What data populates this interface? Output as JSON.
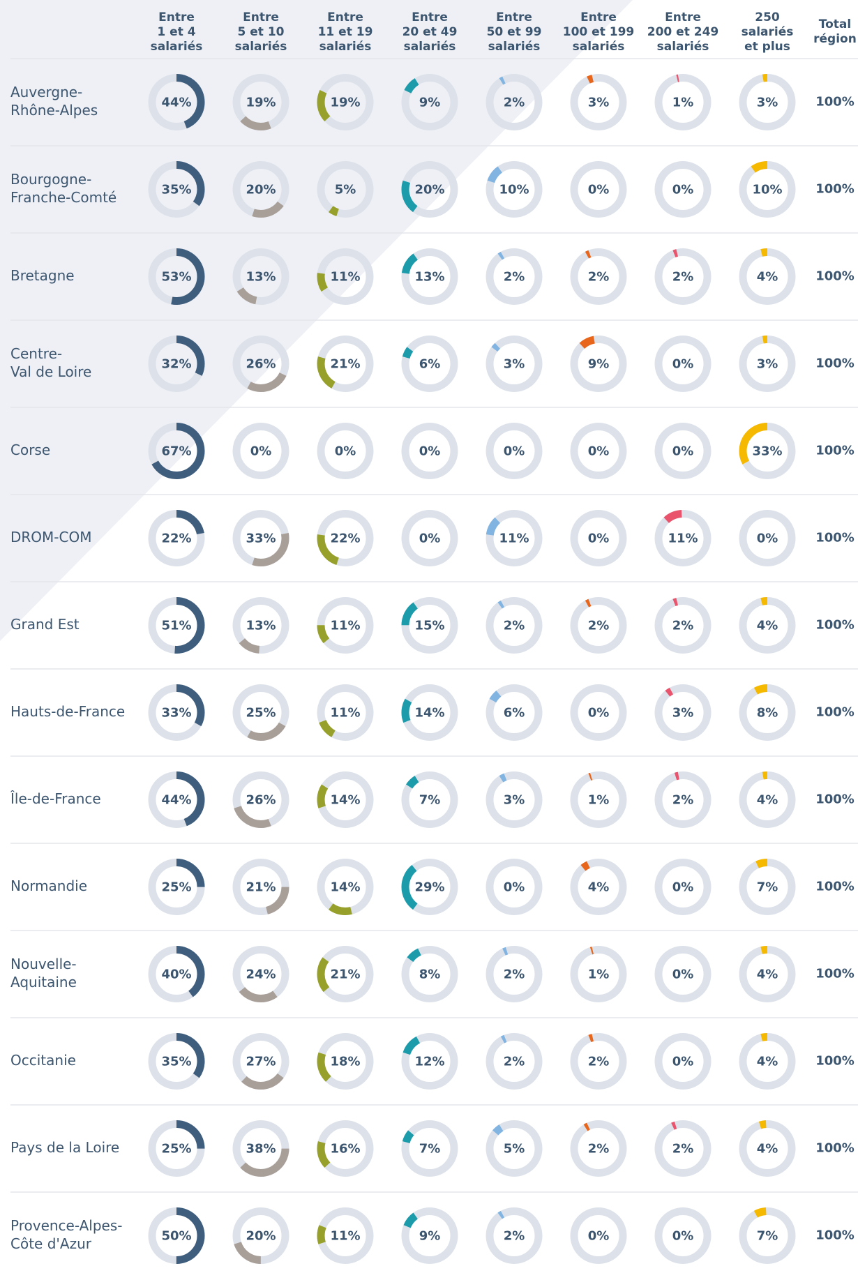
{
  "table": {
    "columns": [
      [
        "Entre",
        "1 et 4",
        "salariés"
      ],
      [
        "Entre",
        "5 et 10",
        "salariés"
      ],
      [
        "Entre",
        "11 et 19",
        "salariés"
      ],
      [
        "Entre",
        "20 et 49",
        "salariés"
      ],
      [
        "Entre",
        "50 et 99",
        "salariés"
      ],
      [
        "Entre",
        "100 et 199",
        "salariés"
      ],
      [
        "Entre",
        "200 et 249",
        "salariés"
      ],
      [
        "250",
        "salariés",
        "et plus"
      ]
    ],
    "total_column": [
      "Total",
      "région"
    ],
    "colors": [
      "#3f5d7c",
      "#a99f99",
      "#96a02a",
      "#1c9bab",
      "#82b4e2",
      "#e8661b",
      "#e9536c",
      "#f6b902"
    ],
    "rows": [
      {
        "region": [
          "Auvergne-",
          "Rhône-Alpes"
        ],
        "values": [
          44,
          19,
          19,
          9,
          2,
          3,
          1,
          3
        ],
        "value_labels": [
          "44%",
          "19%",
          "19%",
          "9%",
          "2%",
          "3%",
          "1%",
          "3%"
        ],
        "total": 100,
        "total_label": "100%"
      },
      {
        "region": [
          "Bourgogne-",
          "Franche-Comté"
        ],
        "values": [
          35,
          20,
          5,
          20,
          10,
          0,
          0,
          10
        ],
        "value_labels": [
          "35%",
          "20%",
          "5%",
          "20%",
          "10%",
          "0%",
          "0%",
          "10%"
        ],
        "total": 100,
        "total_label": "100%"
      },
      {
        "region": [
          "Bretagne"
        ],
        "values": [
          53,
          13,
          11,
          13,
          2,
          2,
          2,
          4
        ],
        "value_labels": [
          "53%",
          "13%",
          "11%",
          "13%",
          "2%",
          "2%",
          "2%",
          "4%"
        ],
        "total": 100,
        "total_label": "100%"
      },
      {
        "region": [
          "Centre-",
          "Val de Loire"
        ],
        "values": [
          32,
          26,
          21,
          6,
          3,
          9,
          0,
          3
        ],
        "value_labels": [
          "32%",
          "26%",
          "21%",
          "6%",
          "3%",
          "9%",
          "0%",
          "3%"
        ],
        "total": 100,
        "total_label": "100%"
      },
      {
        "region": [
          "Corse"
        ],
        "values": [
          67,
          0,
          0,
          0,
          0,
          0,
          0,
          33
        ],
        "value_labels": [
          "67%",
          "0%",
          "0%",
          "0%",
          "0%",
          "0%",
          "0%",
          "33%"
        ],
        "total": 100,
        "total_label": "100%"
      },
      {
        "region": [
          "DROM-COM"
        ],
        "values": [
          22,
          33,
          22,
          0,
          11,
          0,
          11,
          0
        ],
        "value_labels": [
          "22%",
          "33%",
          "22%",
          "0%",
          "11%",
          "0%",
          "11%",
          "0%"
        ],
        "total": 100,
        "total_label": "100%"
      },
      {
        "region": [
          "Grand Est"
        ],
        "values": [
          51,
          13,
          11,
          15,
          2,
          2,
          2,
          4
        ],
        "value_labels": [
          "51%",
          "13%",
          "11%",
          "15%",
          "2%",
          "2%",
          "2%",
          "4%"
        ],
        "total": 100,
        "total_label": "100%"
      },
      {
        "region": [
          "Hauts-de-France"
        ],
        "values": [
          33,
          25,
          11,
          14,
          6,
          0,
          3,
          8
        ],
        "value_labels": [
          "33%",
          "25%",
          "11%",
          "14%",
          "6%",
          "0%",
          "3%",
          "8%"
        ],
        "total": 100,
        "total_label": "100%"
      },
      {
        "region": [
          "Île-de-France"
        ],
        "values": [
          44,
          26,
          14,
          7,
          3,
          1,
          2,
          4
        ],
        "value_labels": [
          "44%",
          "26%",
          "14%",
          "7%",
          "3%",
          "1%",
          "2%",
          "4%"
        ],
        "total": 100,
        "total_label": "100%"
      },
      {
        "region": [
          "Normandie"
        ],
        "values": [
          25,
          21,
          14,
          29,
          0,
          4,
          0,
          7
        ],
        "value_labels": [
          "25%",
          "21%",
          "14%",
          "29%",
          "0%",
          "4%",
          "0%",
          "7%"
        ],
        "total": 100,
        "total_label": "100%"
      },
      {
        "region": [
          "Nouvelle-",
          "Aquitaine"
        ],
        "values": [
          40,
          24,
          21,
          8,
          2,
          1,
          0,
          4
        ],
        "value_labels": [
          "40%",
          "24%",
          "21%",
          "8%",
          "2%",
          "1%",
          "0%",
          "4%"
        ],
        "total": 100,
        "total_label": "100%"
      },
      {
        "region": [
          "Occitanie"
        ],
        "values": [
          35,
          27,
          18,
          12,
          2,
          2,
          0,
          4
        ],
        "value_labels": [
          "35%",
          "27%",
          "18%",
          "12%",
          "2%",
          "2%",
          "0%",
          "4%"
        ],
        "total": 100,
        "total_label": "100%"
      },
      {
        "region": [
          "Pays de la Loire"
        ],
        "values": [
          25,
          38,
          16,
          7,
          5,
          2,
          2,
          4
        ],
        "value_labels": [
          "25%",
          "38%",
          "16%",
          "7%",
          "5%",
          "2%",
          "2%",
          "4%"
        ],
        "total": 100,
        "total_label": "100%"
      },
      {
        "region": [
          "Provence-Alpes-",
          "Côte d'Azur"
        ],
        "values": [
          50,
          20,
          11,
          9,
          2,
          0,
          0,
          7
        ],
        "value_labels": [
          "50%",
          "20%",
          "11%",
          "9%",
          "2%",
          "0%",
          "0%",
          "7%"
        ],
        "total": 100,
        "total_label": "100%"
      }
    ]
  }
}
